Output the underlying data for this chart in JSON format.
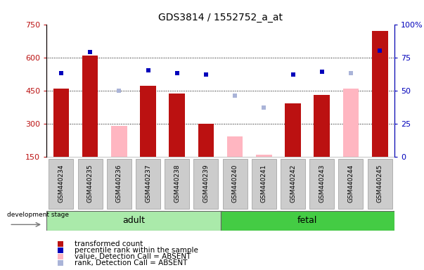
{
  "title": "GDS3814 / 1552752_a_at",
  "samples": [
    "GSM440234",
    "GSM440235",
    "GSM440236",
    "GSM440237",
    "GSM440238",
    "GSM440239",
    "GSM440240",
    "GSM440241",
    "GSM440242",
    "GSM440243",
    "GSM440244",
    "GSM440245"
  ],
  "transformed_count": [
    460,
    607,
    null,
    470,
    435,
    298,
    null,
    null,
    390,
    430,
    null,
    720
  ],
  "percentile_rank": [
    63,
    79,
    null,
    65,
    63,
    62,
    null,
    null,
    62,
    64,
    null,
    80
  ],
  "absent_value": [
    null,
    null,
    290,
    null,
    null,
    null,
    240,
    160,
    null,
    null,
    460,
    null
  ],
  "absent_rank": [
    null,
    null,
    50,
    null,
    null,
    null,
    46,
    37,
    null,
    null,
    63,
    null
  ],
  "adult_count": 6,
  "fetal_count": 6,
  "ylim_left": [
    150,
    750
  ],
  "ylim_right": [
    0,
    100
  ],
  "yticks_left": [
    150,
    300,
    450,
    600,
    750
  ],
  "yticks_right": [
    0,
    25,
    50,
    75,
    100
  ],
  "grid_lines": [
    300,
    450,
    600
  ],
  "bar_color_present": "#bb1111",
  "bar_color_absent": "#ffb6c1",
  "marker_color_present": "#0000bb",
  "marker_color_absent": "#aab4d8",
  "adult_color": "#aaeaaa",
  "fetal_color": "#44cc44",
  "tick_area_color": "#cccccc",
  "tick_border_color": "#999999",
  "stage_border_color": "#666666",
  "bar_width": 0.55,
  "legend_items": [
    {
      "color": "#bb1111",
      "marker": "s",
      "label": "transformed count"
    },
    {
      "color": "#0000bb",
      "marker": "s",
      "label": "percentile rank within the sample"
    },
    {
      "color": "#ffb6c1",
      "marker": "s",
      "label": "value, Detection Call = ABSENT"
    },
    {
      "color": "#aab4d8",
      "marker": "s",
      "label": "rank, Detection Call = ABSENT"
    }
  ]
}
